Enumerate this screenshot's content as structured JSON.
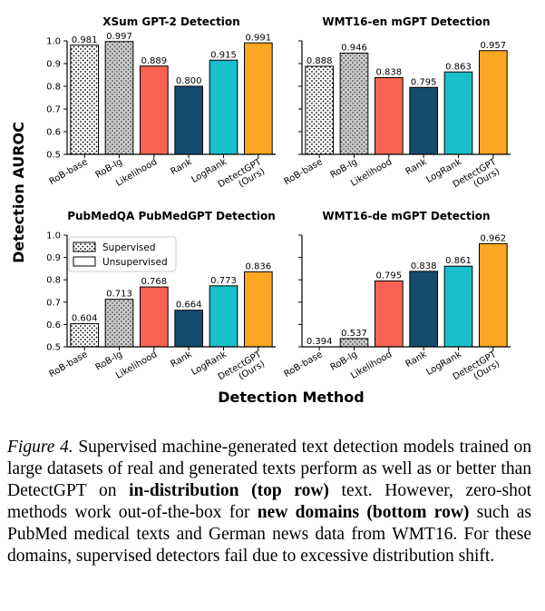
{
  "figure": {
    "ylabel": "Detection AUROC",
    "xlabel": "Detection Method"
  },
  "legend": {
    "supervised": "Supervised",
    "unsupervised": "Unsupervised"
  },
  "colors": {
    "supervised_base": "#ffffff",
    "supervised_lg": "#c8c8c8",
    "likelihood": "#f96353",
    "rank": "#154d6e",
    "logrank": "#19bfca",
    "detectgpt": "#fca621"
  },
  "chart_data": [
    {
      "type": "bar",
      "title": "XSum GPT-2 Detection",
      "categories": [
        "RoB-base",
        "RoB-lg",
        "Likelihood",
        "Rank",
        "LogRank",
        "DetectGPT (Ours)"
      ],
      "values": [
        0.981,
        0.997,
        0.889,
        0.8,
        0.915,
        0.991
      ],
      "value_labels": [
        "0.981",
        "0.997",
        "0.889",
        "0.800",
        "0.915",
        "0.991"
      ],
      "ylim": [
        0.5,
        1.0
      ],
      "yticks": [
        "0.5",
        "0.6",
        "0.7",
        "0.8",
        "0.9",
        "1.0"
      ],
      "show_yticks": true
    },
    {
      "type": "bar",
      "title": "WMT16-en mGPT Detection",
      "categories": [
        "RoB-base",
        "RoB-lg",
        "Likelihood",
        "Rank",
        "LogRank",
        "DetectGPT (Ours)"
      ],
      "values": [
        0.888,
        0.946,
        0.838,
        0.795,
        0.863,
        0.957
      ],
      "value_labels": [
        "0.888",
        "0.946",
        "0.838",
        "0.795",
        "0.863",
        "0.957"
      ],
      "ylim": [
        0.5,
        1.0
      ],
      "yticks": [
        "0.5",
        "0.6",
        "0.7",
        "0.8",
        "0.9",
        "1.0"
      ],
      "show_yticks": false
    },
    {
      "type": "bar",
      "title": "PubMedQA PubMedGPT Detection",
      "categories": [
        "RoB-base",
        "RoB-lg",
        "Likelihood",
        "Rank",
        "LogRank",
        "DetectGPT (Ours)"
      ],
      "values": [
        0.604,
        0.713,
        0.768,
        0.664,
        0.773,
        0.836
      ],
      "value_labels": [
        "0.604",
        "0.713",
        "0.768",
        "0.664",
        "0.773",
        "0.836"
      ],
      "ylim": [
        0.5,
        1.0
      ],
      "yticks": [
        "0.5",
        "0.6",
        "0.7",
        "0.8",
        "0.9",
        "1.0"
      ],
      "show_yticks": true,
      "legend": true
    },
    {
      "type": "bar",
      "title": "WMT16-de mGPT Detection",
      "categories": [
        "RoB-base",
        "RoB-lg",
        "Likelihood",
        "Rank",
        "LogRank",
        "DetectGPT (Ours)"
      ],
      "values": [
        0.394,
        0.537,
        0.795,
        0.838,
        0.861,
        0.962
      ],
      "value_labels": [
        "0.394",
        "0.537",
        "0.795",
        "0.838",
        "0.861",
        "0.962"
      ],
      "ylim": [
        0.5,
        1.0
      ],
      "yticks": [
        "0.5",
        "0.6",
        "0.7",
        "0.8",
        "0.9",
        "1.0"
      ],
      "show_yticks": false
    }
  ],
  "caption": {
    "label": "Figure 4.",
    "part1": " Supervised machine-generated text detection models trained on large datasets of real and generated texts perform as well as or better than DetectGPT on ",
    "bold1": "in-distribution (top row)",
    "part2": " text. However, zero-shot methods work out-of-the-box for ",
    "bold2": "new domains (bottom row)",
    "part3": " such as PubMed medical texts and German news data from WMT16. For these domains, supervised detectors fail due to excessive distribution shift."
  }
}
